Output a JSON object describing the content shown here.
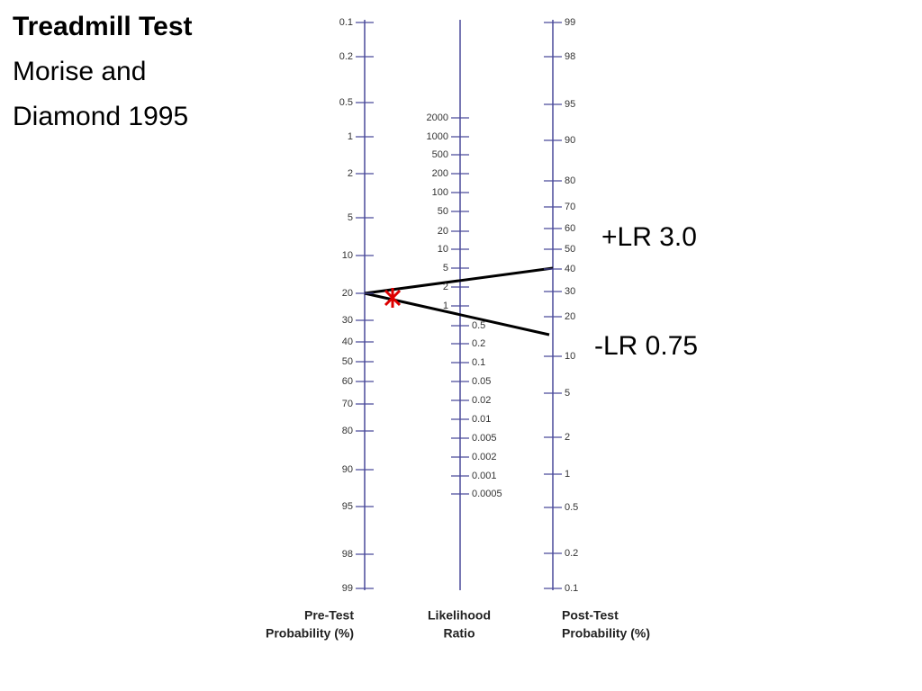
{
  "header": {
    "title": "Treadmill Test",
    "subtitle": [
      "Morise and",
      "Diamond 1995"
    ]
  },
  "axes": [
    {
      "title": [
        "Pre-Test",
        "Probability (%)"
      ],
      "ticks": [
        "0.1",
        "0.2",
        "0.5",
        "1",
        "2",
        "5",
        "10",
        "20",
        "30",
        "40",
        "50",
        "60",
        "70",
        "80",
        "90",
        "95",
        "98",
        "99"
      ]
    },
    {
      "title": [
        "Likelihood",
        "Ratio"
      ],
      "ticks": [
        "2000",
        "1000",
        "500",
        "200",
        "100",
        "50",
        "20",
        "10",
        "5",
        "2",
        "1",
        "0.5",
        "0.2",
        "0.1",
        "0.05",
        "0.02",
        "0.01",
        "0.005",
        "0.002",
        "0.001",
        "0.0005"
      ]
    },
    {
      "title": [
        "Post-Test",
        "Probability (%)"
      ],
      "ticks": [
        "99",
        "98",
        "95",
        "90",
        "80",
        "70",
        "60",
        "50",
        "40",
        "30",
        "20",
        "10",
        "5",
        "2",
        "1",
        "0.5",
        "0.2",
        "0.1"
      ]
    }
  ],
  "annotations": [
    "+LR 3.0",
    "-LR 0.75"
  ]
}
